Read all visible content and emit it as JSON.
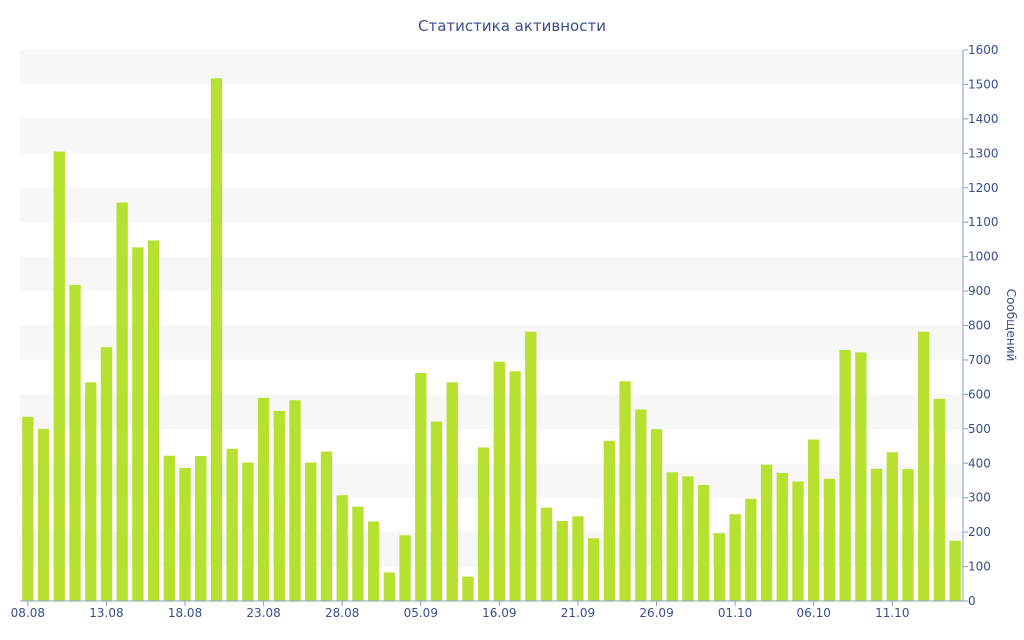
{
  "chart_data": {
    "type": "bar",
    "title": "Статистика активности",
    "ylabel": "Сообщений",
    "xlabel": "",
    "ylim": [
      0,
      1600
    ],
    "y_ticks": [
      0,
      100,
      200,
      300,
      400,
      500,
      600,
      700,
      800,
      900,
      1000,
      1100,
      1200,
      1300,
      1400,
      1500,
      1600
    ],
    "y_axis_position": "right",
    "x_tick_labels": [
      "08.08",
      "13.08",
      "18.08",
      "23.08",
      "28.08",
      "05.09",
      "16.09",
      "21.09",
      "26.09",
      "01.10",
      "06.10",
      "11.10"
    ],
    "x_tick_indices": [
      0,
      5,
      10,
      15,
      20,
      25,
      30,
      35,
      40,
      45,
      50,
      55
    ],
    "grid": "alternating horizontal bands",
    "colors": {
      "bar": "#b8e030",
      "band": "#f7f7f7",
      "text": "#3a4f8a",
      "axis": "#8a9cc8"
    },
    "values": [
      535,
      500,
      1305,
      918,
      635,
      737,
      1157,
      1027,
      1047,
      422,
      386,
      421,
      1518,
      442,
      402,
      590,
      552,
      583,
      402,
      434,
      307,
      274,
      231,
      83,
      191,
      662,
      521,
      635,
      71,
      446,
      695,
      667,
      782,
      271,
      232,
      246,
      182,
      465,
      638,
      556,
      499,
      374,
      362,
      337,
      197,
      252,
      297,
      396,
      372,
      347,
      469,
      355,
      729,
      722,
      384,
      432,
      383,
      782,
      587,
      175
    ]
  }
}
